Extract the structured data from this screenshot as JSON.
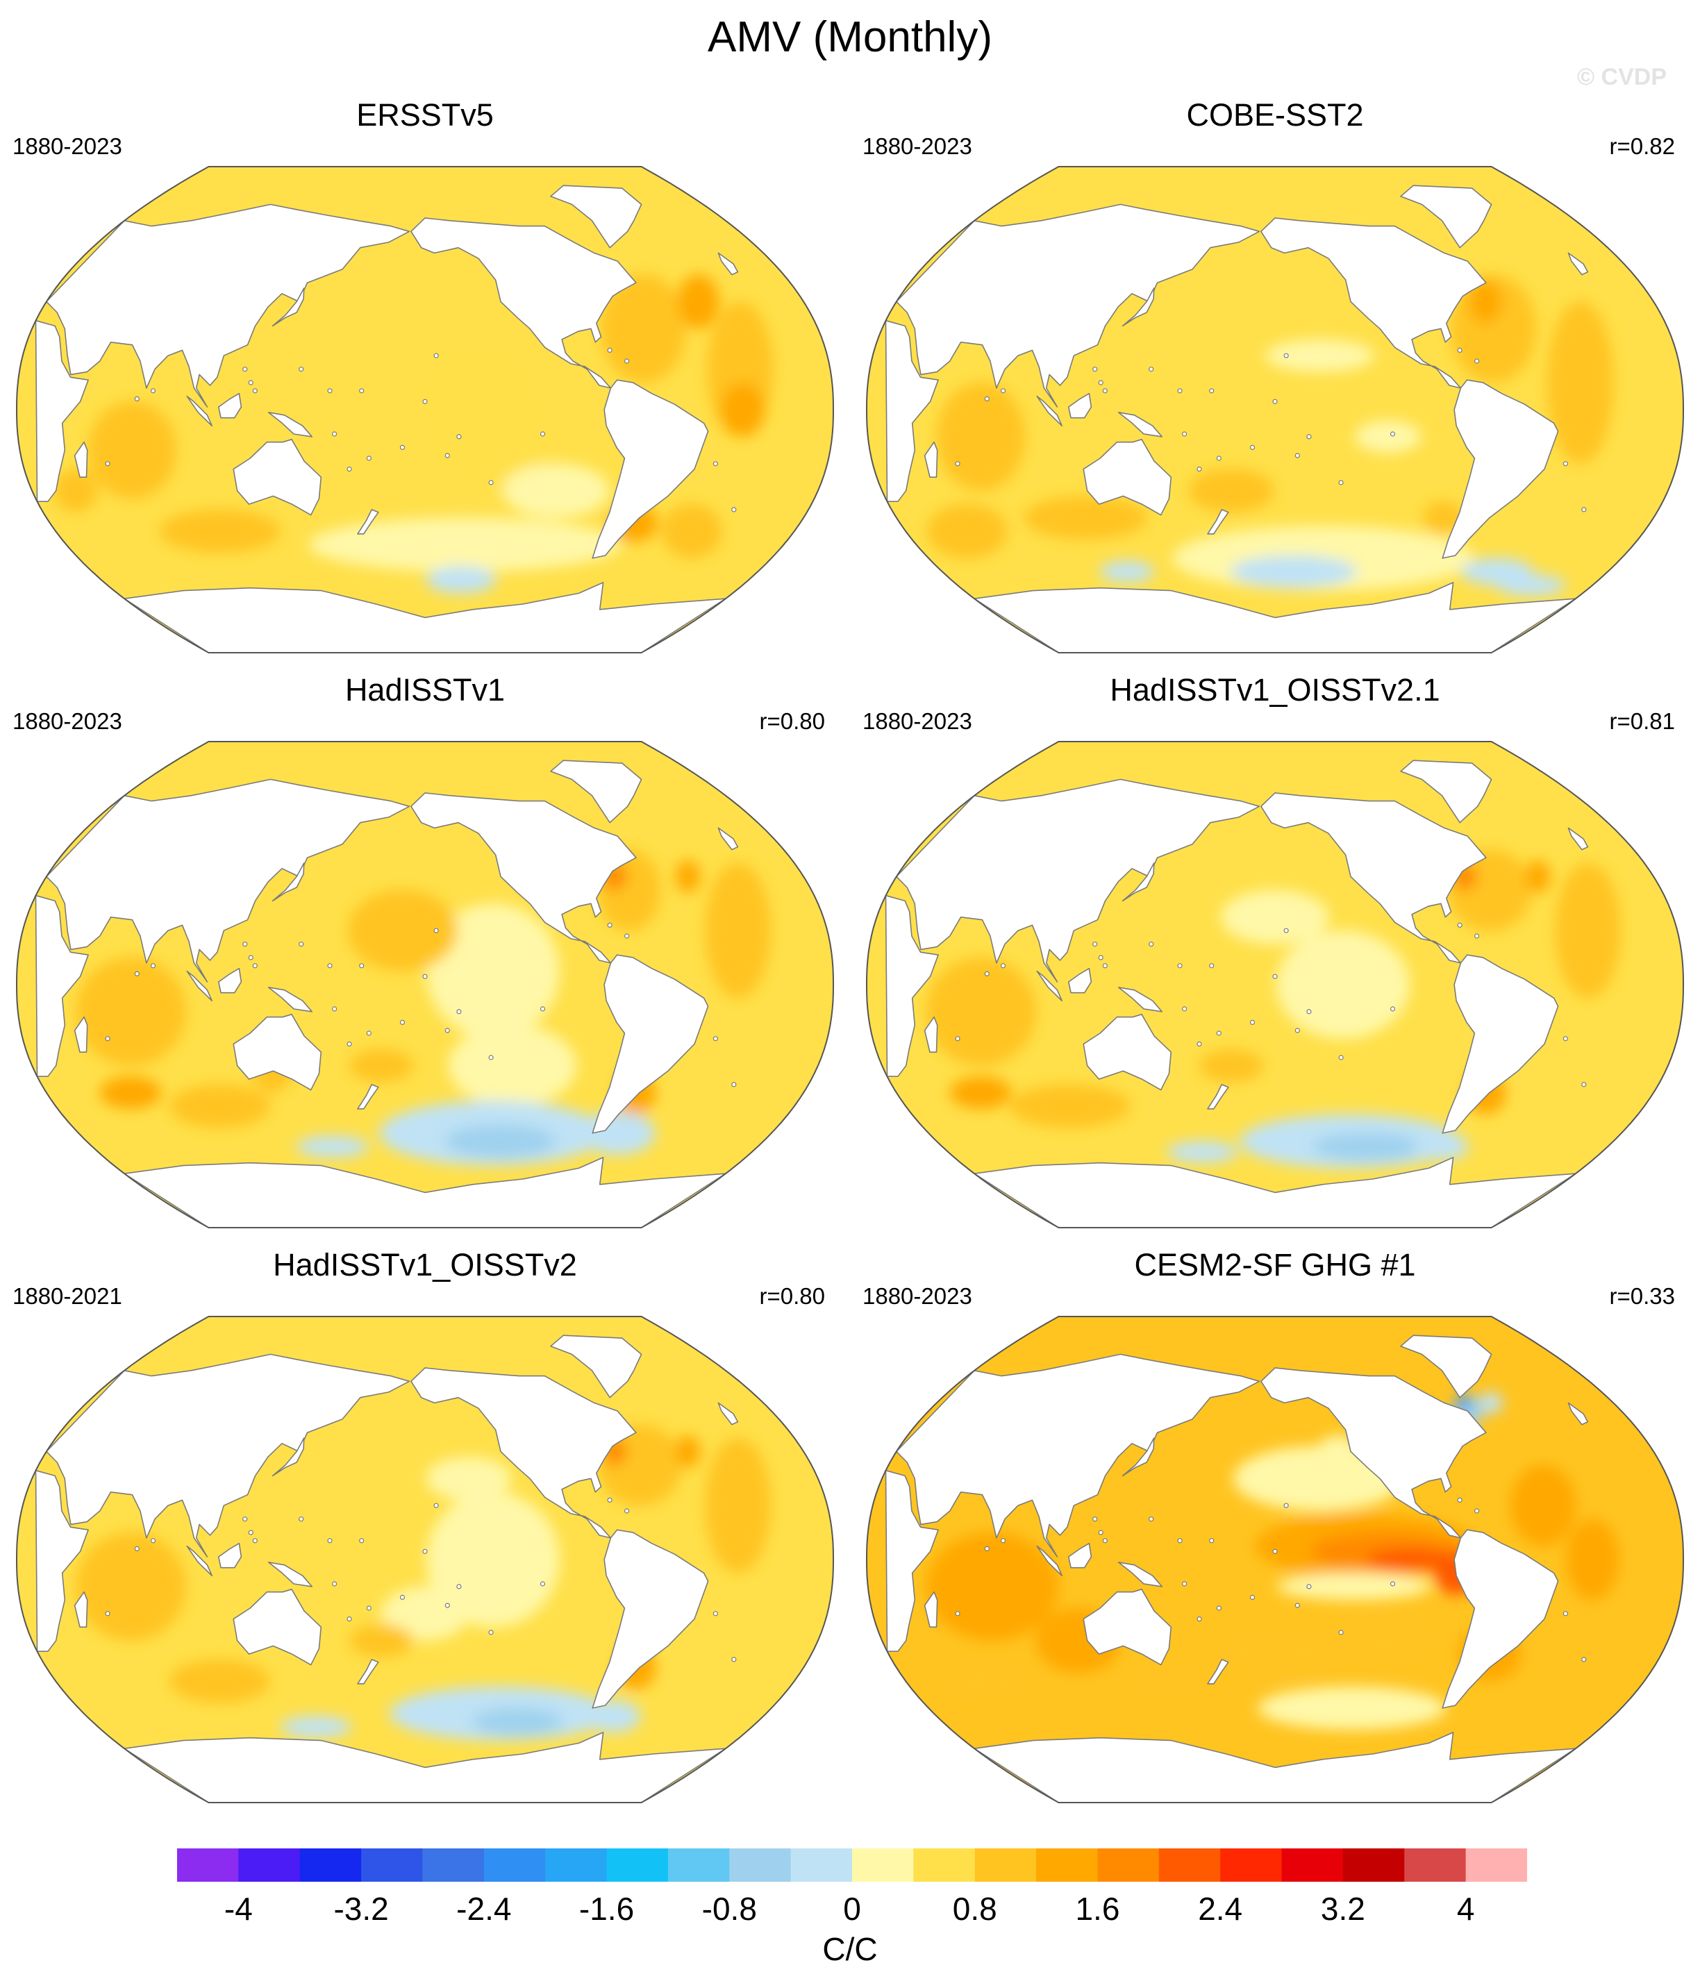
{
  "figure": {
    "title": "AMV (Monthly)",
    "watermark": "© CVDP",
    "units": "C/C"
  },
  "colorbar": {
    "colors": [
      "#8b2cf0",
      "#4b1cf5",
      "#1428f0",
      "#2e55e8",
      "#3b74e6",
      "#2f8ff2",
      "#28a6f6",
      "#12c2f7",
      "#60c8f2",
      "#9fd1ee",
      "#bfe2f5",
      "#fff8a8",
      "#ffe04a",
      "#ffc420",
      "#ffa800",
      "#ff8a00",
      "#ff5a00",
      "#ff2800",
      "#e80008",
      "#c40000",
      "#d84848",
      "#ffb0b0"
    ],
    "tick_labels": [
      "-4",
      "-3.2",
      "-2.4",
      "-1.6",
      "-0.8",
      "0",
      "0.8",
      "1.6",
      "2.4",
      "3.2",
      "4"
    ]
  },
  "chart_data": [
    {
      "type": "heatmap",
      "title": "ERSSTv5",
      "period": "1880-2023",
      "r": ""
    },
    {
      "type": "heatmap",
      "title": "COBE-SST2",
      "period": "1880-2023",
      "r": "r=0.82"
    },
    {
      "type": "heatmap",
      "title": "HadISSTv1",
      "period": "1880-2023",
      "r": "r=0.80"
    },
    {
      "type": "heatmap",
      "title": "HadISSTv1_OISSTv2.1",
      "period": "1880-2023",
      "r": "r=0.81"
    },
    {
      "type": "heatmap",
      "title": "HadISSTv1_OISSTv2",
      "period": "1880-2021",
      "r": "r=0.80"
    },
    {
      "type": "heatmap",
      "title": "CESM2-SF GHG #1",
      "period": "1880-2023",
      "r": "r=0.33"
    }
  ]
}
